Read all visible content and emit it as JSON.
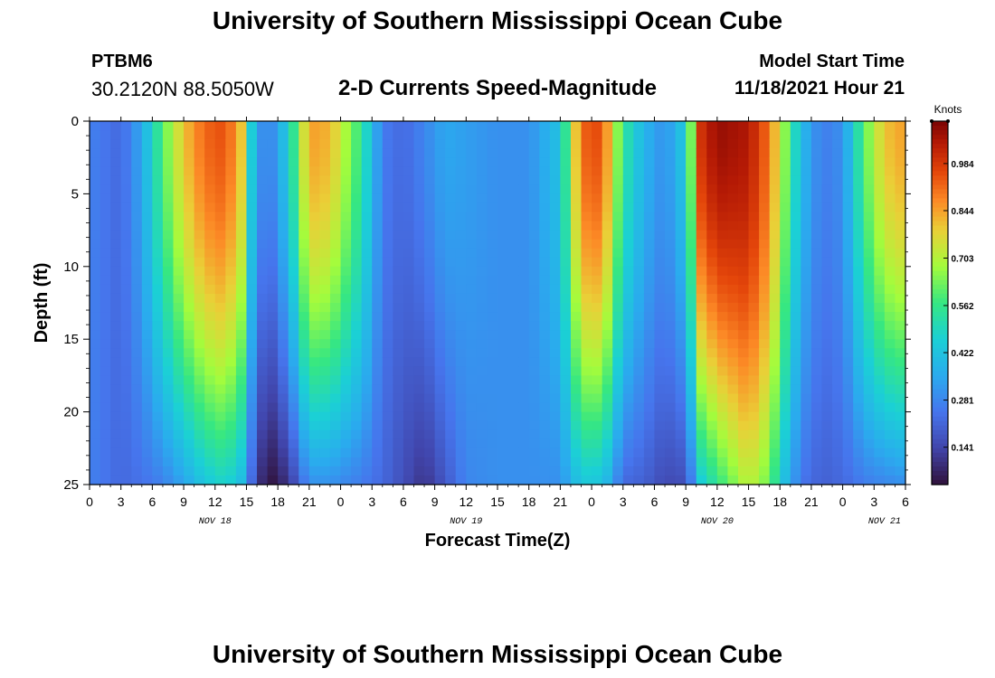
{
  "header": {
    "title": "University of Southern Mississippi Ocean Cube",
    "station": "PTBM6",
    "coords": "30.2120N  88.5050W",
    "subtitle": "2-D Currents Speed-Magnitude",
    "model_start_label": "Model Start Time",
    "model_start_value": "11/18/2021 Hour 21"
  },
  "footer": {
    "title": "University of Southern Mississippi Ocean Cube"
  },
  "chart_data": {
    "type": "heatmap",
    "title": "2-D Currents Speed-Magnitude",
    "xlabel": "Forecast Time(Z)",
    "ylabel": "Depth (ft)",
    "x_ticks": [
      "0",
      "3",
      "6",
      "9",
      "12",
      "15",
      "18",
      "21",
      "0",
      "3",
      "6",
      "9",
      "12",
      "15",
      "18",
      "21",
      "0",
      "3",
      "6",
      "9",
      "12",
      "15",
      "18",
      "21",
      "0",
      "3",
      "6"
    ],
    "date_labels": [
      {
        "label": "NOV 18",
        "hour": 12
      },
      {
        "label": "NOV 19",
        "hour": 36
      },
      {
        "label": "NOV 20",
        "hour": 60
      },
      {
        "label": "NOV 21",
        "hour": 76
      }
    ],
    "x_range_hours": [
      0,
      78
    ],
    "y_ticks": [
      0,
      5,
      10,
      15,
      20,
      25
    ],
    "ylim": [
      0,
      25
    ],
    "colorbar": {
      "label": "Knots",
      "ticks": [
        "0.984",
        "0.844",
        "0.703",
        "0.562",
        "0.422",
        "0.281",
        "0.141"
      ],
      "tick_values": [
        0.984,
        0.844,
        0.703,
        0.562,
        0.422,
        0.281,
        0.141
      ],
      "range": [
        0.03,
        1.11
      ]
    },
    "speed_profile_anchors": [
      {
        "hour": 0.0,
        "surface": 0.27,
        "bottom": 0.27
      },
      {
        "hour": 3.0,
        "surface": 0.22,
        "bottom": 0.22
      },
      {
        "hour": 5.0,
        "surface": 0.35,
        "bottom": 0.24
      },
      {
        "hour": 7.0,
        "surface": 0.6,
        "bottom": 0.27
      },
      {
        "hour": 9.0,
        "surface": 0.8,
        "bottom": 0.34
      },
      {
        "hour": 11.0,
        "surface": 0.92,
        "bottom": 0.43
      },
      {
        "hour": 13.0,
        "surface": 0.95,
        "bottom": 0.48
      },
      {
        "hour": 14.5,
        "surface": 0.8,
        "bottom": 0.4
      },
      {
        "hour": 15.5,
        "surface": 0.45,
        "bottom": 0.22
      },
      {
        "hour": 16.5,
        "surface": 0.3,
        "bottom": 0.08
      },
      {
        "hour": 17.5,
        "surface": 0.3,
        "bottom": 0.04
      },
      {
        "hour": 19.0,
        "surface": 0.45,
        "bottom": 0.1
      },
      {
        "hour": 21.0,
        "surface": 0.85,
        "bottom": 0.3
      },
      {
        "hour": 23.0,
        "surface": 0.82,
        "bottom": 0.3
      },
      {
        "hour": 26.0,
        "surface": 0.55,
        "bottom": 0.26
      },
      {
        "hour": 28.0,
        "surface": 0.26,
        "bottom": 0.22
      },
      {
        "hour": 30.0,
        "surface": 0.22,
        "bottom": 0.16
      },
      {
        "hour": 32.0,
        "surface": 0.28,
        "bottom": 0.1
      },
      {
        "hour": 34.0,
        "surface": 0.35,
        "bottom": 0.18
      },
      {
        "hour": 36.0,
        "surface": 0.33,
        "bottom": 0.28
      },
      {
        "hour": 39.0,
        "surface": 0.3,
        "bottom": 0.3
      },
      {
        "hour": 42.0,
        "surface": 0.3,
        "bottom": 0.3
      },
      {
        "hour": 45.0,
        "surface": 0.42,
        "bottom": 0.3
      },
      {
        "hour": 46.5,
        "surface": 0.8,
        "bottom": 0.4
      },
      {
        "hour": 48.0,
        "surface": 1.0,
        "bottom": 0.45
      },
      {
        "hour": 49.5,
        "surface": 0.85,
        "bottom": 0.38
      },
      {
        "hour": 51.0,
        "surface": 0.55,
        "bottom": 0.22
      },
      {
        "hour": 53.0,
        "surface": 0.38,
        "bottom": 0.2
      },
      {
        "hour": 55.0,
        "surface": 0.3,
        "bottom": 0.15
      },
      {
        "hour": 57.0,
        "surface": 0.45,
        "bottom": 0.16
      },
      {
        "hour": 58.5,
        "surface": 1.0,
        "bottom": 0.45
      },
      {
        "hour": 60.0,
        "surface": 1.08,
        "bottom": 0.55
      },
      {
        "hour": 63.0,
        "surface": 1.05,
        "bottom": 0.72
      },
      {
        "hour": 65.0,
        "surface": 0.9,
        "bottom": 0.62
      },
      {
        "hour": 66.5,
        "surface": 0.65,
        "bottom": 0.4
      },
      {
        "hour": 68.0,
        "surface": 0.4,
        "bottom": 0.25
      },
      {
        "hour": 70.0,
        "surface": 0.26,
        "bottom": 0.2
      },
      {
        "hour": 72.0,
        "surface": 0.3,
        "bottom": 0.22
      },
      {
        "hour": 74.0,
        "surface": 0.6,
        "bottom": 0.26
      },
      {
        "hour": 76.0,
        "surface": 0.8,
        "bottom": 0.28
      },
      {
        "hour": 78.0,
        "surface": 0.85,
        "bottom": 0.3
      }
    ]
  }
}
